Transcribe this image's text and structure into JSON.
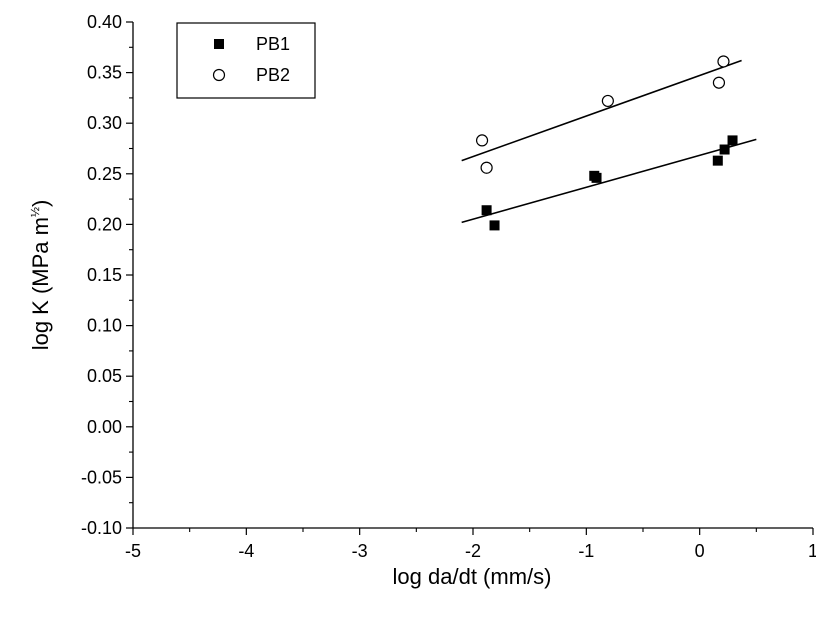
{
  "chart_data": {
    "type": "scatter",
    "title": "",
    "xlabel": "log da/dt (mm/s)",
    "ylabel_main": "log K (MPa m",
    "ylabel_sup": "½",
    "ylabel_close": ")",
    "xlim": [
      -5,
      1
    ],
    "ylim": [
      -0.1,
      0.4
    ],
    "x_ticks": [
      -5,
      -4,
      -3,
      -2,
      -1,
      0,
      1
    ],
    "x_tick_labels": [
      "-5",
      "-4",
      "-3",
      "-2",
      "-1",
      "0",
      "1"
    ],
    "y_ticks": [
      -0.1,
      -0.05,
      0.0,
      0.05,
      0.1,
      0.15,
      0.2,
      0.25,
      0.3,
      0.35,
      0.4
    ],
    "y_tick_labels": [
      "-0.10",
      "-0.05",
      "0.00",
      "0.05",
      "0.10",
      "0.15",
      "0.20",
      "0.25",
      "0.30",
      "0.35",
      "0.40"
    ],
    "grid": false,
    "legend_position": "top-left",
    "series": [
      {
        "name": "PB1",
        "marker": "filled-square",
        "color": "#000000",
        "points": [
          {
            "x": -1.88,
            "y": 0.214
          },
          {
            "x": -1.81,
            "y": 0.199
          },
          {
            "x": -0.93,
            "y": 0.248
          },
          {
            "x": -0.91,
            "y": 0.246
          },
          {
            "x": 0.16,
            "y": 0.263
          },
          {
            "x": 0.22,
            "y": 0.274
          },
          {
            "x": 0.29,
            "y": 0.283
          }
        ],
        "fit_line": {
          "x": [
            -2.1,
            0.5
          ],
          "y": [
            0.202,
            0.284
          ]
        }
      },
      {
        "name": "PB2",
        "marker": "open-circle",
        "color": "#000000",
        "points": [
          {
            "x": -1.92,
            "y": 0.283
          },
          {
            "x": -1.88,
            "y": 0.256
          },
          {
            "x": -0.81,
            "y": 0.322
          },
          {
            "x": 0.17,
            "y": 0.34
          },
          {
            "x": 0.21,
            "y": 0.361
          }
        ],
        "fit_line": {
          "x": [
            -2.1,
            0.37
          ],
          "y": [
            0.263,
            0.362
          ]
        }
      }
    ]
  }
}
